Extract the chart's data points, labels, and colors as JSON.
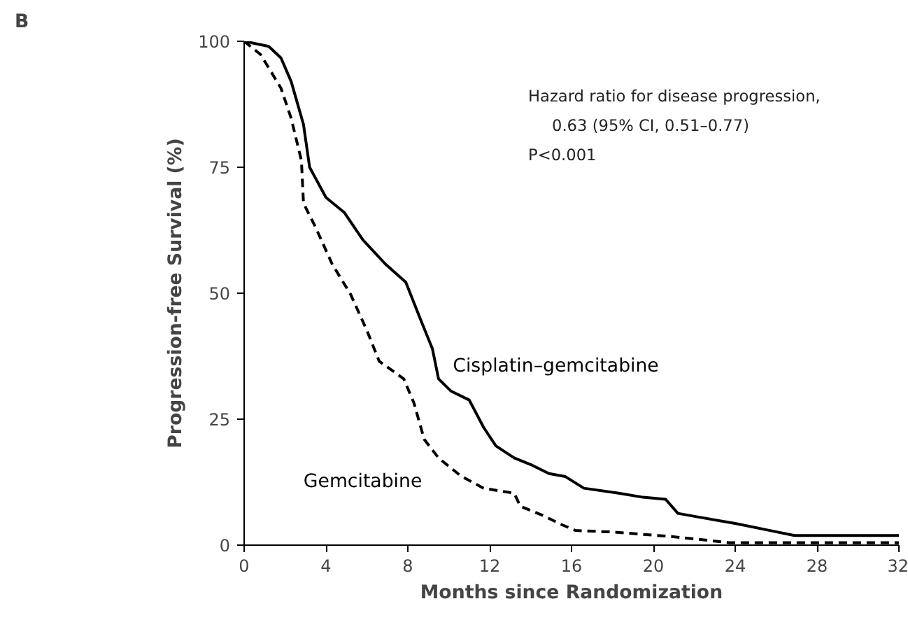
{
  "chart_data": {
    "type": "line",
    "xlabel": "Months since Randomization",
    "ylabel": "Progression-free Survival (%)",
    "xlim": [
      0,
      32
    ],
    "xticks": [
      0,
      4,
      8,
      12,
      16,
      20,
      24,
      28,
      32
    ],
    "ylim": [
      0,
      100
    ],
    "yticks": [
      0,
      25,
      50,
      75,
      100
    ],
    "grid": false,
    "legend": false,
    "marker": "none",
    "annotations": [
      "B",
      "Hazard ratio for disease progression,",
      "0.63 (95% CI, 0.51–0.77)",
      "P<0.001"
    ],
    "series": [
      {
        "name": "Cisplatin–gemcitabine",
        "color": "#000000",
        "line_style": "solid",
        "x": [
          0,
          1.2,
          1.8,
          2.3,
          2.9,
          3.2,
          4.0,
          4.9,
          5.8,
          6.9,
          7.9,
          8.6,
          9.2,
          9.5,
          10.1,
          11.0,
          11.7,
          12.3,
          13.2,
          14.0,
          14.9,
          15.7,
          16.6,
          18.3,
          19.5,
          20.6,
          21.2,
          22.3,
          24.0,
          25.7,
          26.9,
          32
        ],
        "values": [
          100,
          99,
          96.7,
          92,
          83.5,
          75,
          69,
          66,
          60.6,
          55.8,
          52.2,
          45,
          39,
          33,
          30.6,
          28.8,
          23.4,
          19.7,
          17.3,
          16,
          14.2,
          13.6,
          11.3,
          10.3,
          9.5,
          9.1,
          6.3,
          5.5,
          4.3,
          2.9,
          1.9,
          1.9
        ]
      },
      {
        "name": "Gemcitabine",
        "color": "#000000",
        "line_style": "dashed",
        "x": [
          0,
          0.8,
          1.8,
          2.3,
          2.8,
          2.9,
          3.5,
          4.3,
          5.2,
          6.0,
          6.6,
          7.8,
          8.3,
          8.8,
          9.5,
          10.6,
          11.7,
          13.2,
          13.5,
          14.6,
          15.5,
          16.2,
          18.0,
          20.9,
          23.7,
          32
        ],
        "values": [
          100,
          97.4,
          90.7,
          84.7,
          76.3,
          67.9,
          63,
          55.8,
          49.8,
          42.6,
          36.5,
          33,
          28.2,
          21,
          17.3,
          13.7,
          11.3,
          10.3,
          7.7,
          5.9,
          4.1,
          2.9,
          2.6,
          1.7,
          0.5,
          0.5
        ]
      }
    ]
  }
}
